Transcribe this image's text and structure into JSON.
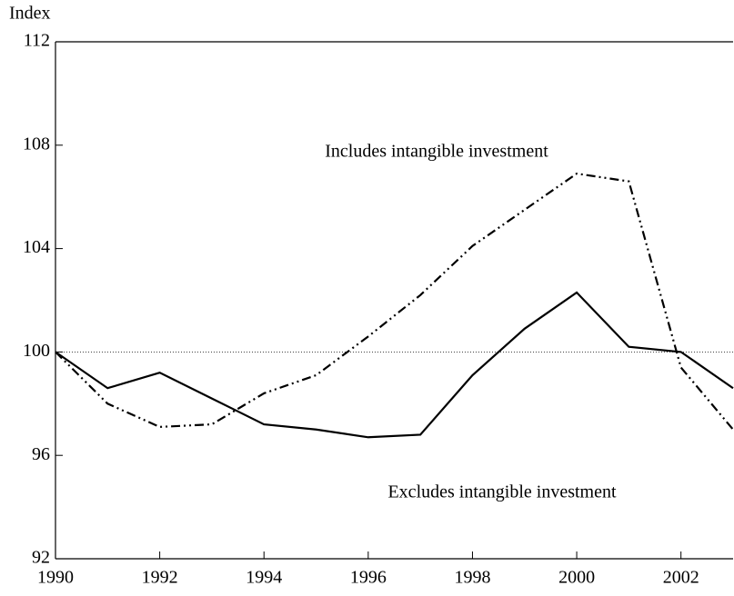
{
  "chart_data": {
    "type": "line",
    "y_axis_label": "Index",
    "x": [
      1990,
      1991,
      1992,
      1993,
      1994,
      1995,
      1996,
      1997,
      1998,
      1999,
      2000,
      2001,
      2002,
      2003
    ],
    "series": [
      {
        "name": "Includes intangible investment",
        "color": "#000000",
        "linestyle": "dashdotdot",
        "values": [
          100,
          98.0,
          97.1,
          97.2,
          98.4,
          99.1,
          100.6,
          102.2,
          104.1,
          105.5,
          106.9,
          106.6,
          99.4,
          97.0
        ]
      },
      {
        "name": "Excludes intangible investment",
        "color": "#000000",
        "linestyle": "solid",
        "values": [
          100,
          98.6,
          99.2,
          98.2,
          97.2,
          97.0,
          96.7,
          96.8,
          99.1,
          100.9,
          102.3,
          100.2,
          100.0,
          98.6
        ]
      }
    ],
    "reference_line": 100,
    "xlim": [
      1990,
      2003
    ],
    "xticks": [
      1990,
      1992,
      1994,
      1996,
      1998,
      2000,
      2002
    ],
    "ylim": [
      92,
      112
    ],
    "yticks": [
      92,
      96,
      100,
      104,
      108,
      112
    ]
  }
}
